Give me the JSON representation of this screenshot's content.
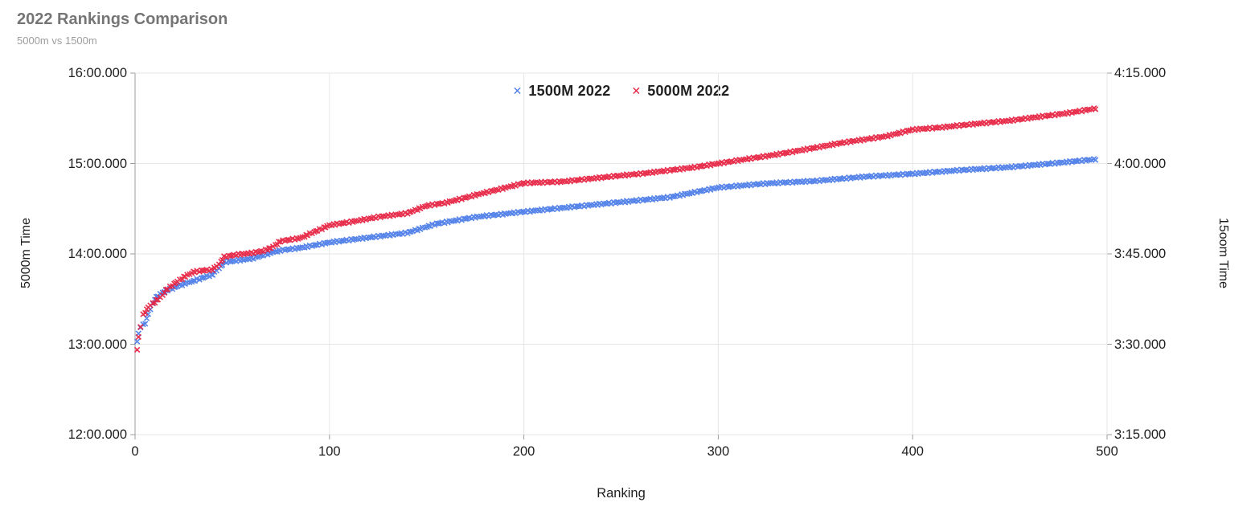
{
  "header": {
    "title": "2022 Rankings Comparison",
    "subtitle": "5000m vs 1500m",
    "title_color": "#757575",
    "subtitle_color": "#9e9e9e"
  },
  "chart_data": {
    "type": "scatter",
    "title": "2022 Rankings Comparison",
    "subtitle": "5000m vs 1500m",
    "xlabel": "Ranking",
    "xlim": [
      0,
      500
    ],
    "x_ticks": [
      0,
      100,
      200,
      300,
      400,
      500
    ],
    "rank_range": [
      1,
      494
    ],
    "grid": true,
    "legend_position": "top-center",
    "colors": {
      "grid": "#e6e6e6",
      "axis_line": "#9e9e9e",
      "tick": "#9e9e9e",
      "tick_label": "#1e1e1e"
    },
    "left_axis": {
      "label": "5000m Time",
      "tick_labels": [
        "16:00.000",
        "15:00.000",
        "14:00.000",
        "13:00.000",
        "12:00.000"
      ],
      "tick_seconds": [
        960,
        900,
        840,
        780,
        720
      ],
      "lim_seconds": [
        720,
        960
      ],
      "values_format": "m:ss.mmm"
    },
    "right_axis": {
      "label": "15oom Time",
      "tick_labels": [
        "4:15.000",
        "4:00.000",
        "3:45.000",
        "3:30.000",
        "3:15.000"
      ],
      "tick_seconds": [
        255,
        240,
        225,
        210,
        195
      ],
      "lim_seconds": [
        195,
        255
      ],
      "values_format": "m:ss.mmm"
    },
    "series": [
      {
        "name": "1500M 2022",
        "axis": "right",
        "marker": "x",
        "color": "#4a7be8",
        "anchors_rank_seconds": [
          [
            1,
            210.5
          ],
          [
            3,
            212.9
          ],
          [
            5,
            213.5
          ],
          [
            7,
            215.0
          ],
          [
            10,
            217.5
          ],
          [
            14,
            218.6
          ],
          [
            20,
            219.4
          ],
          [
            25,
            220.0
          ],
          [
            30,
            220.5
          ],
          [
            40,
            221.6
          ],
          [
            46,
            223.6
          ],
          [
            55,
            224.0
          ],
          [
            60,
            224.2
          ],
          [
            68,
            225.0
          ],
          [
            75,
            225.6
          ],
          [
            85,
            226.0
          ],
          [
            100,
            226.9
          ],
          [
            110,
            227.3
          ],
          [
            125,
            227.9
          ],
          [
            140,
            228.5
          ],
          [
            155,
            230.0
          ],
          [
            175,
            231.1
          ],
          [
            200,
            232.0
          ],
          [
            225,
            232.8
          ],
          [
            250,
            233.6
          ],
          [
            275,
            234.4
          ],
          [
            300,
            236.0
          ],
          [
            325,
            236.7
          ],
          [
            350,
            237.1
          ],
          [
            375,
            237.8
          ],
          [
            400,
            238.3
          ],
          [
            425,
            238.9
          ],
          [
            450,
            239.4
          ],
          [
            475,
            240.1
          ],
          [
            494,
            240.7
          ]
        ]
      },
      {
        "name": "5000M 2022",
        "axis": "left",
        "marker": "x",
        "color": "#e6203f",
        "anchors_rank_seconds": [
          [
            1,
            776.5
          ],
          [
            2,
            784.5
          ],
          [
            3,
            792.0
          ],
          [
            4,
            799.5
          ],
          [
            6,
            803.0
          ],
          [
            8,
            806.0
          ],
          [
            10,
            808.0
          ],
          [
            13,
            811.0
          ],
          [
            16,
            816.0
          ],
          [
            20,
            820.0
          ],
          [
            25,
            824.5
          ],
          [
            30,
            828.0
          ],
          [
            35,
            829.0
          ],
          [
            40,
            829.5
          ],
          [
            43,
            833.0
          ],
          [
            46,
            838.0
          ],
          [
            52,
            839.5
          ],
          [
            60,
            840.5
          ],
          [
            66,
            842.0
          ],
          [
            70,
            844.0
          ],
          [
            75,
            848.5
          ],
          [
            85,
            850.5
          ],
          [
            100,
            859.0
          ],
          [
            110,
            861.0
          ],
          [
            125,
            864.5
          ],
          [
            140,
            867.0
          ],
          [
            150,
            872.0
          ],
          [
            160,
            874.0
          ],
          [
            175,
            879.0
          ],
          [
            200,
            887.0
          ],
          [
            220,
            888.0
          ],
          [
            235,
            890.0
          ],
          [
            250,
            892.0
          ],
          [
            262,
            893.5
          ],
          [
            275,
            895.5
          ],
          [
            288,
            897.5
          ],
          [
            300,
            900.0
          ],
          [
            315,
            903.0
          ],
          [
            330,
            906.0
          ],
          [
            350,
            910.5
          ],
          [
            365,
            914.0
          ],
          [
            386,
            918.0
          ],
          [
            400,
            922.5
          ],
          [
            415,
            924.0
          ],
          [
            430,
            926.0
          ],
          [
            450,
            928.5
          ],
          [
            465,
            931.0
          ],
          [
            480,
            933.5
          ],
          [
            494,
            936.5
          ]
        ]
      }
    ]
  },
  "legend": {
    "items": [
      {
        "label": "1500M 2022",
        "marker_glyph": "✕",
        "color": "#4a7be8"
      },
      {
        "label": "5000M 2022",
        "marker_glyph": "✕",
        "color": "#e6203f"
      }
    ]
  }
}
